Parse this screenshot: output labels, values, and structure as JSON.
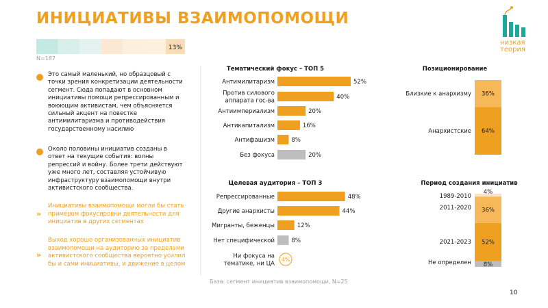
{
  "title": "ИНИЦИАТИВЫ ВЗАИМОПОМОЩИ",
  "logo": {
    "line1": "низкая",
    "line2": "теория",
    "accent": "#f0a020",
    "bars_color": "#1fa89a"
  },
  "share_bar": {
    "label": "13%",
    "value": 13,
    "segment_colors": [
      "#c4e8e2",
      "#d8efea",
      "#e5f3f0",
      "#fbe7d2",
      "#fdeedd",
      "#fdf0de",
      "#f9dcb5"
    ]
  },
  "n_label": "N=187",
  "bullets": [
    {
      "lines": [
        "Это самый маленький, но образцовый с",
        "точки зрения конкретизации деятельности",
        "сегмент. Сюда попадают в основном",
        "инициативы помощи репрессированным и",
        "воюющим активистам, чем объясняется",
        "сильный акцент на повестке",
        "антимилитаризма и противодействия",
        "государственному насилию"
      ]
    },
    {
      "lines": [
        "Около половины инициатив созданы в",
        "ответ на текущие события: волны",
        "репрессий и войну. Более трети действуют",
        "уже много лет, составляя устойчивую",
        "инфраструктуру взаимопомощи внутри",
        "активистского сообщества."
      ]
    }
  ],
  "highlights": [
    {
      "lines": [
        "Инициативы взаимопомощи могли бы стать",
        "примером фокусировки деятельности для",
        "инициатив в других сегментах"
      ]
    },
    {
      "lines": [
        "Выход хорошо организованных инициатив",
        "взаимопомощи на аудиторию за пределами",
        "активистского сообщества вероятно усилил",
        "бы и сами инициативы, и движение в целом"
      ]
    }
  ],
  "base_note": "База: сегмент инициатив взаимопомощи, N=25",
  "page_number": "10",
  "colors": {
    "orange": "#f0a020",
    "gray": "#bdbdbd",
    "light_orange": "#f7b85a"
  },
  "chart_data": [
    {
      "type": "bar",
      "orientation": "horizontal",
      "title": "Тематический фокус – ТОП 5",
      "categories": [
        "Антимилитаризм",
        "Против силового аппарата гос-ва",
        "Антиимпериализм",
        "Антикапитализм",
        "Антифашизм",
        "Без фокуса"
      ],
      "category_lines": [
        [
          "Антимилитаризм"
        ],
        [
          "Против силового",
          "аппарата гос-ва"
        ],
        [
          "Антиимпериализм"
        ],
        [
          "Антикапитализм"
        ],
        [
          "Антифашизм"
        ],
        [
          "Без фокуса"
        ]
      ],
      "values": [
        52,
        40,
        20,
        16,
        8,
        20
      ],
      "value_labels": [
        "52%",
        "40%",
        "20%",
        "16%",
        "8%",
        "20%"
      ],
      "bar_colors": [
        "#f0a020",
        "#f0a020",
        "#f0a020",
        "#f0a020",
        "#f0a020",
        "#bdbdbd"
      ],
      "xlim": [
        0,
        52
      ]
    },
    {
      "type": "bar",
      "orientation": "horizontal",
      "title": "Целевая аудитория – ТОП 3",
      "categories": [
        "Репрессированные",
        "Другие анархисты",
        "Мигранты, беженцы",
        "Нет специфической",
        "Ни фокуса на тематике, ни ЦА"
      ],
      "category_lines": [
        [
          "Репрессированные"
        ],
        [
          "Другие анархисты"
        ],
        [
          "Мигранты, беженцы"
        ],
        [
          "Нет специфической"
        ],
        [
          "Ни фокуса на",
          "тематике, ни ЦА"
        ]
      ],
      "values": [
        48,
        44,
        12,
        8,
        4
      ],
      "value_labels": [
        "48%",
        "44%",
        "12%",
        "8%",
        "4%"
      ],
      "bar_colors": [
        "#f0a020",
        "#f0a020",
        "#f0a020",
        "#bdbdbd",
        null
      ],
      "last_as_circle": true,
      "xlim": [
        0,
        52
      ]
    },
    {
      "type": "bar",
      "orientation": "stacked-vertical",
      "title": "Позиционирование",
      "segments": [
        {
          "name": "Близкие к анархизму",
          "value": 36,
          "label": "36%",
          "color": "#f7b85a"
        },
        {
          "name": "Анархистские",
          "value": 64,
          "label": "64%",
          "color": "#f0a020"
        }
      ]
    },
    {
      "type": "bar",
      "orientation": "stacked-vertical",
      "title": "Период создания инициатив",
      "segments": [
        {
          "name": "1989-2010",
          "value": 4,
          "label": "4%",
          "color": "#fbe3bd"
        },
        {
          "name": "2011-2020",
          "value": 36,
          "label": "36%",
          "color": "#f7b85a"
        },
        {
          "name": "2021-2023",
          "value": 52,
          "label": "52%",
          "color": "#f0a020"
        },
        {
          "name": "Не определен",
          "value": 8,
          "label": "8%",
          "color": "#bdbdbd"
        }
      ]
    }
  ]
}
